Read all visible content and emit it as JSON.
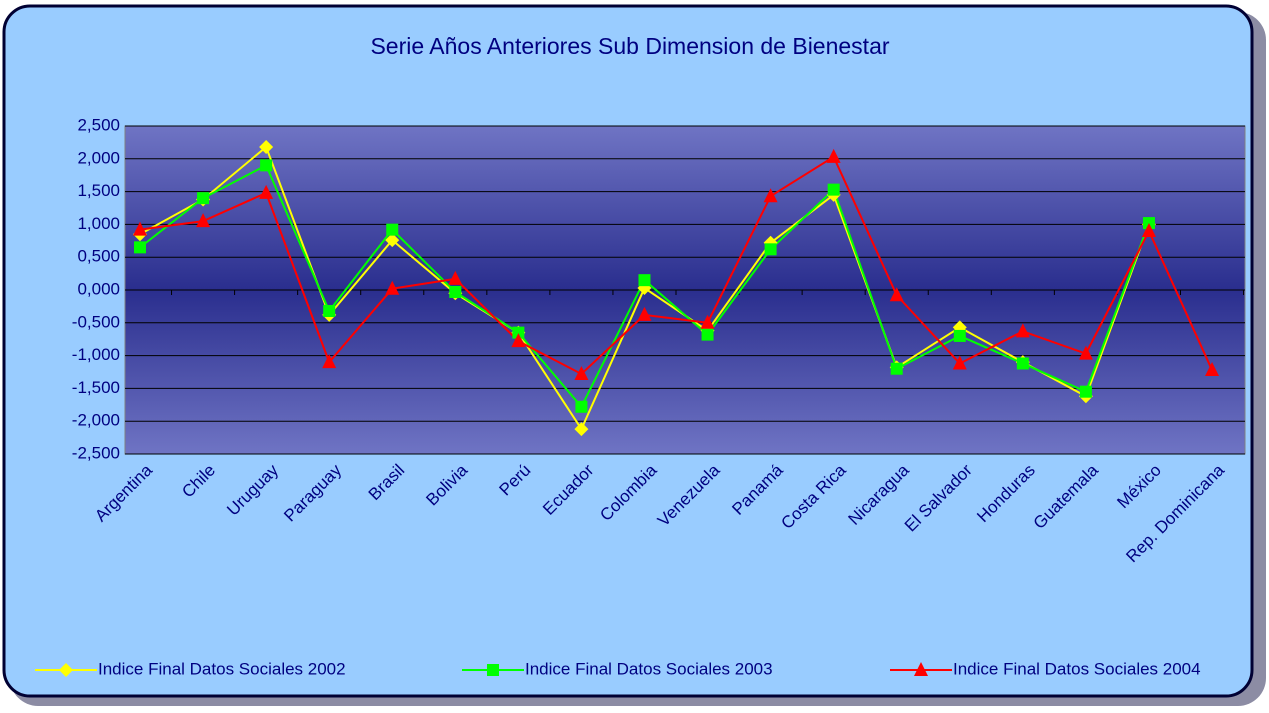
{
  "chart_data": {
    "type": "line",
    "title": "Serie Años Anteriores Sub Dimension de Bienestar",
    "categories": [
      "Argentina",
      "Chile",
      "Uruguay",
      "Paraguay",
      "Brasil",
      "Bolivia",
      "Perú",
      "Ecuador",
      "Colombia",
      "Venezuela",
      "Panamá",
      "Costa Rica",
      "Nicaragua",
      "El Salvador",
      "Honduras",
      "Guatemala",
      "México",
      "Rep. Dominicana"
    ],
    "series": [
      {
        "name": "Indice Final Datos Sociales 2002",
        "color": "#ffff00",
        "marker": "diamond",
        "values": [
          0.85,
          1.38,
          2.18,
          -0.38,
          0.76,
          -0.05,
          -0.65,
          -2.12,
          0.03,
          -0.62,
          0.72,
          1.45,
          -1.18,
          -0.57,
          -1.1,
          -1.62,
          1.0,
          null
        ]
      },
      {
        "name": "Indice Final Datos Sociales 2003",
        "color": "#00ff00",
        "marker": "square",
        "values": [
          0.65,
          1.4,
          1.9,
          -0.32,
          0.92,
          -0.03,
          -0.65,
          -1.78,
          0.15,
          -0.68,
          0.62,
          1.53,
          -1.2,
          -0.7,
          -1.12,
          -1.55,
          1.02,
          null
        ]
      },
      {
        "name": "Indice Final Datos Sociales 2004",
        "color": "#ff0000",
        "marker": "triangle",
        "values": [
          0.92,
          1.05,
          1.48,
          -1.1,
          0.02,
          0.17,
          -0.78,
          -1.28,
          -0.38,
          -0.5,
          1.43,
          2.03,
          -0.08,
          -1.12,
          -0.63,
          -0.97,
          0.9,
          -1.22
        ]
      }
    ],
    "ylim": [
      -2.5,
      2.5
    ],
    "yticks": [
      {
        "value": 2.5,
        "label": "2,500"
      },
      {
        "value": 2,
        "label": "2,000"
      },
      {
        "value": 1.5,
        "label": "1,500"
      },
      {
        "value": 1,
        "label": "1,000"
      },
      {
        "value": 0.5,
        "label": "0,500"
      },
      {
        "value": 0,
        "label": "0,000"
      },
      {
        "value": -0.5,
        "label": "-0,500"
      },
      {
        "value": -1,
        "label": "-1,000"
      },
      {
        "value": -1.5,
        "label": "-1,500"
      },
      {
        "value": -2,
        "label": "-2,000"
      },
      {
        "value": -2.5,
        "label": "-2,500"
      }
    ],
    "grid": true,
    "legend": "bottom"
  }
}
